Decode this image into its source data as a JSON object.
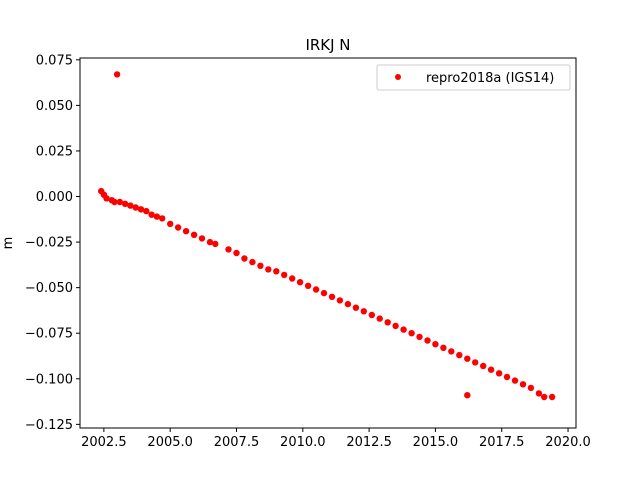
{
  "chart_data": {
    "type": "scatter",
    "title": "IRKJ N",
    "xlabel": "",
    "ylabel": "m",
    "xlim": [
      2001.6,
      2020.3
    ],
    "ylim": [
      -0.127,
      0.076
    ],
    "x_ticks": [
      2002.5,
      2005.0,
      2007.5,
      2010.0,
      2012.5,
      2015.0,
      2017.5,
      2020.0
    ],
    "x_tick_labels": [
      "2002.5",
      "2005.0",
      "2007.5",
      "2010.0",
      "2012.5",
      "2015.0",
      "2017.5",
      "2020.0"
    ],
    "y_ticks": [
      0.075,
      0.05,
      0.025,
      0.0,
      -0.025,
      -0.05,
      -0.075,
      -0.1,
      -0.125
    ],
    "y_tick_labels": [
      "0.075",
      "0.050",
      "0.025",
      "0.000",
      "−0.025",
      "−0.050",
      "−0.075",
      "−0.100",
      "−0.125"
    ],
    "grid": false,
    "legend_position": "top-right",
    "series": [
      {
        "name": "repro2018a (IGS14)",
        "color": "#ff0000",
        "marker": "circle",
        "points": [
          [
            2002.4,
            0.003
          ],
          [
            2002.5,
            0.001
          ],
          [
            2002.6,
            -0.001
          ],
          [
            2002.8,
            -0.002
          ],
          [
            2002.9,
            -0.003
          ],
          [
            2003.0,
            0.067
          ],
          [
            2003.1,
            -0.003
          ],
          [
            2003.3,
            -0.004
          ],
          [
            2003.5,
            -0.005
          ],
          [
            2003.7,
            -0.006
          ],
          [
            2003.9,
            -0.007
          ],
          [
            2004.1,
            -0.008
          ],
          [
            2004.3,
            -0.01
          ],
          [
            2004.5,
            -0.011
          ],
          [
            2004.7,
            -0.012
          ],
          [
            2005.0,
            -0.015
          ],
          [
            2005.3,
            -0.017
          ],
          [
            2005.6,
            -0.019
          ],
          [
            2005.9,
            -0.021
          ],
          [
            2006.2,
            -0.023
          ],
          [
            2006.5,
            -0.025
          ],
          [
            2006.7,
            -0.026
          ],
          [
            2007.2,
            -0.029
          ],
          [
            2007.5,
            -0.031
          ],
          [
            2007.8,
            -0.034
          ],
          [
            2008.1,
            -0.036
          ],
          [
            2008.4,
            -0.038
          ],
          [
            2008.7,
            -0.04
          ],
          [
            2009.0,
            -0.041
          ],
          [
            2009.3,
            -0.043
          ],
          [
            2009.6,
            -0.045
          ],
          [
            2009.9,
            -0.047
          ],
          [
            2010.2,
            -0.049
          ],
          [
            2010.5,
            -0.051
          ],
          [
            2010.8,
            -0.053
          ],
          [
            2011.1,
            -0.055
          ],
          [
            2011.4,
            -0.057
          ],
          [
            2011.7,
            -0.059
          ],
          [
            2012.0,
            -0.061
          ],
          [
            2012.3,
            -0.063
          ],
          [
            2012.6,
            -0.065
          ],
          [
            2012.9,
            -0.067
          ],
          [
            2013.2,
            -0.069
          ],
          [
            2013.5,
            -0.071
          ],
          [
            2013.8,
            -0.073
          ],
          [
            2014.1,
            -0.075
          ],
          [
            2014.4,
            -0.077
          ],
          [
            2014.7,
            -0.079
          ],
          [
            2015.0,
            -0.081
          ],
          [
            2015.3,
            -0.083
          ],
          [
            2015.6,
            -0.085
          ],
          [
            2015.9,
            -0.087
          ],
          [
            2016.2,
            -0.089
          ],
          [
            2016.2,
            -0.109
          ],
          [
            2016.5,
            -0.091
          ],
          [
            2016.8,
            -0.093
          ],
          [
            2017.1,
            -0.095
          ],
          [
            2017.4,
            -0.097
          ],
          [
            2017.7,
            -0.099
          ],
          [
            2018.0,
            -0.101
          ],
          [
            2018.3,
            -0.103
          ],
          [
            2018.6,
            -0.105
          ],
          [
            2018.9,
            -0.108
          ],
          [
            2019.1,
            -0.11
          ],
          [
            2019.4,
            -0.11
          ]
        ]
      }
    ]
  }
}
